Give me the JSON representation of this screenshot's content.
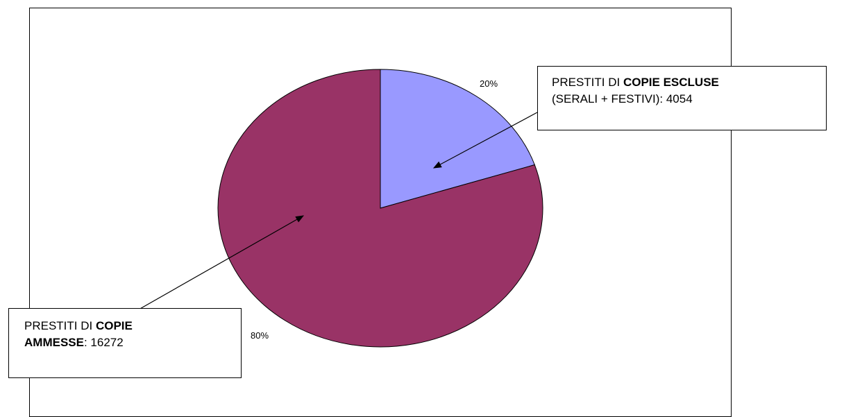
{
  "chart_data": {
    "type": "pie",
    "categories": [
      "COPIE ESCLUSE (SERALI + FESTIVI)",
      "COPIE AMMESSE"
    ],
    "values": [
      4054,
      16272
    ],
    "percent_labels": [
      "20%",
      "80%"
    ],
    "colors": [
      "#9999FF",
      "#993366"
    ],
    "legend": "none"
  },
  "callouts": {
    "excluded": {
      "prefix": "PRESTITI DI ",
      "bold": "COPIE ESCLUSE",
      "line2": "(SERALI + FESTIVI): 4054"
    },
    "admitted": {
      "prefix": "PRESTITI DI ",
      "bold1": "COPIE",
      "bold2": "AMMESSE",
      "suffix": ": 16272"
    }
  }
}
